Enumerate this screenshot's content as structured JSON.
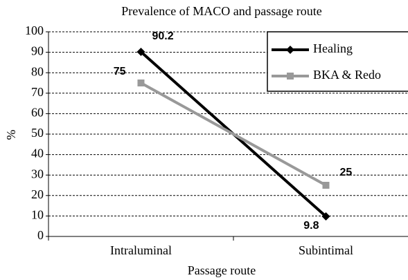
{
  "chart_data": {
    "type": "line",
    "title": "Prevalence of MACO and passage route",
    "x_label": "Passage route",
    "y_label": "%",
    "categories": [
      "Intraluminal",
      "Subintimal"
    ],
    "series": [
      {
        "name": "Healing",
        "color": "#000000",
        "marker": "diamond",
        "values": [
          90.2,
          9.8
        ]
      },
      {
        "name": "BKA & Redo",
        "color": "#999999",
        "marker": "square",
        "values": [
          75,
          25
        ]
      }
    ],
    "ylim": [
      0,
      100
    ],
    "yticks": [
      0,
      10,
      20,
      30,
      40,
      50,
      60,
      70,
      80,
      90,
      100
    ],
    "grid": true,
    "legend": "upper right"
  }
}
